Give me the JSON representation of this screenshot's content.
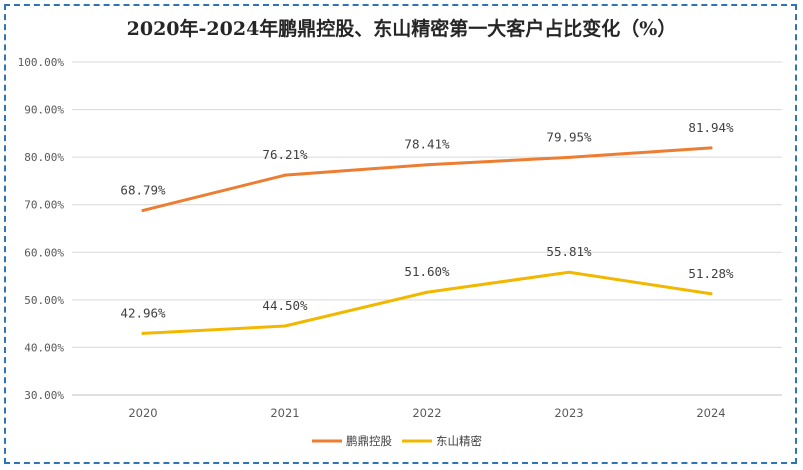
{
  "chart_data": {
    "type": "line",
    "title": "2020年-2024年鹏鼎控股、东山精密第一大客户占比变化（%）",
    "categories": [
      "2020",
      "2021",
      "2022",
      "2023",
      "2024"
    ],
    "series": [
      {
        "name": "鹏鼎控股",
        "color": "#ed7d31",
        "values": [
          68.79,
          76.21,
          78.41,
          79.95,
          81.94
        ],
        "labels": [
          "68.79%",
          "76.21%",
          "78.41%",
          "79.95%",
          "81.94%"
        ]
      },
      {
        "name": "东山精密",
        "color": "#f2b800",
        "values": [
          42.96,
          44.5,
          51.6,
          55.81,
          51.28
        ],
        "labels": [
          "42.96%",
          "44.50%",
          "51.60%",
          "55.81%",
          "51.28%"
        ]
      }
    ],
    "ylim": [
      30,
      100
    ],
    "yticks": [
      30,
      40,
      50,
      60,
      70,
      80,
      90,
      100
    ],
    "ytick_labels": [
      "30.00%",
      "40.00%",
      "50.00%",
      "60.00%",
      "70.00%",
      "80.00%",
      "90.00%",
      "100.00%"
    ],
    "grid": true,
    "legend_position": "bottom"
  }
}
